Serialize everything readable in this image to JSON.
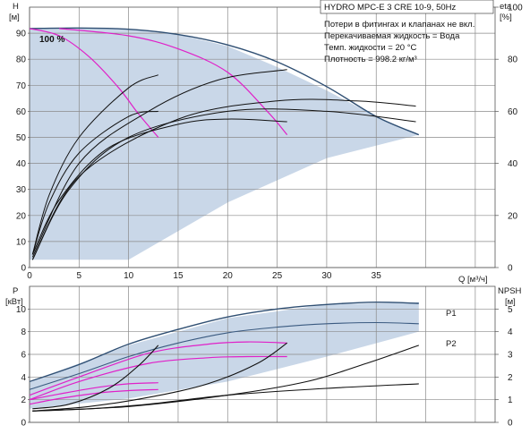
{
  "chart_data": [
    {
      "type": "line",
      "title": "HYDRO MPC-E 3 CRE 10-9, 50Hz",
      "notes": [
        "Потери в фитингах и клапанах не вкл.",
        "Перекачиваемая жидкость = Вода",
        "Темп. жидкости = 20 °C",
        "Плотность = 998.2 кг/м³"
      ],
      "ylabel_left": [
        "H",
        "[м]"
      ],
      "ylabel_right": [
        "eta",
        "[%]"
      ],
      "xlabel": "Q [м³/ч]",
      "xlim": [
        0,
        47
      ],
      "ylim_left": [
        0,
        100
      ],
      "ylim_right": [
        0,
        100
      ],
      "x_ticks": [
        "0",
        "5",
        "10",
        "15",
        "20",
        "25",
        "30",
        "35"
      ],
      "y_ticks_left": [
        "0",
        "10",
        "20",
        "30",
        "40",
        "50",
        "60",
        "70",
        "80",
        "90"
      ],
      "y_ticks_right": [
        "0",
        "20",
        "40",
        "60",
        "80",
        "100"
      ],
      "speed_label": "100 %",
      "colors": {
        "envelope": "#c9d7e8",
        "max_curve": "#2f4f73",
        "system": "#e020c8",
        "eta": "#111111"
      },
      "envelope": {
        "x": [
          0,
          5,
          10,
          15,
          20,
          25,
          30,
          35,
          39.3,
          39.3,
          30,
          20,
          10,
          5,
          0
        ],
        "y": [
          92,
          92,
          91.5,
          89.5,
          85,
          77,
          68,
          58,
          51,
          51,
          42,
          25,
          3,
          3,
          3
        ]
      },
      "series": [
        {
          "name": "",
          "role": "max",
          "x": [
            0,
            5,
            10,
            15,
            20,
            25,
            30,
            35,
            39.3
          ],
          "y": [
            91.8,
            92,
            91.5,
            89.5,
            85.5,
            79,
            69.5,
            58,
            51
          ]
        },
        {
          "name": "",
          "role": "system",
          "x": [
            0,
            3,
            6,
            9,
            11,
            13
          ],
          "y": [
            91.8,
            89,
            81,
            69,
            59,
            50
          ]
        },
        {
          "name": "",
          "role": "system",
          "x": [
            3,
            10,
            15,
            20,
            24,
            26
          ],
          "y": [
            91.8,
            89,
            84,
            75,
            60,
            51
          ]
        },
        {
          "name": "",
          "role": "eta",
          "axis": "right",
          "x": [
            0.3,
            2,
            5,
            10,
            13
          ],
          "y": [
            5,
            28,
            50,
            69,
            74
          ]
        },
        {
          "name": "",
          "role": "eta",
          "axis": "right",
          "x": [
            0.3,
            2,
            5,
            10,
            13
          ],
          "y": [
            5,
            25,
            44,
            58,
            60
          ]
        },
        {
          "name": "",
          "role": "eta",
          "axis": "right",
          "x": [
            0.3,
            3,
            8,
            15,
            20,
            26
          ],
          "y": [
            5,
            26,
            46,
            55,
            57,
            56
          ]
        },
        {
          "name": "",
          "role": "eta",
          "axis": "right",
          "x": [
            0.3,
            5,
            12,
            19,
            26
          ],
          "y": [
            4,
            40,
            60,
            72,
            76
          ]
        },
        {
          "name": "",
          "role": "eta",
          "axis": "right",
          "x": [
            0.3,
            4,
            10,
            20,
            30,
            39
          ],
          "y": [
            3,
            30,
            50,
            60,
            60,
            56
          ]
        },
        {
          "name": "",
          "role": "eta",
          "axis": "right",
          "x": [
            0.3,
            5,
            15,
            25,
            33,
            39
          ],
          "y": [
            3,
            35,
            57,
            64,
            64,
            62
          ]
        }
      ]
    },
    {
      "type": "line",
      "ylabel_left": [
        "P",
        "[кВт]"
      ],
      "ylabel_right": [
        "NPSH",
        "[м]"
      ],
      "xlim": [
        0,
        47
      ],
      "ylim_left": [
        0,
        12
      ],
      "ylim_right": [
        0,
        6
      ],
      "y_ticks_left": [
        "0",
        "2",
        "4",
        "6",
        "8",
        "10"
      ],
      "y_ticks_right": [
        "0",
        "1",
        "2",
        "3",
        "4",
        "5"
      ],
      "labels": [
        "P1",
        "P2"
      ],
      "envelope": {
        "x": [
          0,
          10,
          20,
          30,
          39.3,
          39.3,
          30,
          20,
          10,
          0
        ],
        "y": [
          3.6,
          6.8,
          9.2,
          10.4,
          10.6,
          8,
          5.8,
          3.6,
          2.1,
          1.2
        ]
      },
      "series": [
        {
          "name": "P1",
          "role": "max",
          "axis": "left",
          "x": [
            0,
            5,
            10,
            15,
            20,
            25,
            30,
            35,
            39.3
          ],
          "y": [
            3.6,
            5.1,
            6.9,
            8.2,
            9.3,
            10,
            10.4,
            10.6,
            10.5
          ]
        },
        {
          "name": "P2",
          "role": "max2",
          "axis": "left",
          "x": [
            0,
            5,
            10,
            15,
            20,
            25,
            30,
            35,
            39.3
          ],
          "y": [
            2.9,
            4.3,
            5.8,
            7,
            7.9,
            8.4,
            8.7,
            8.8,
            8.7
          ]
        },
        {
          "name": "",
          "role": "system",
          "axis": "left",
          "x": [
            0,
            3,
            7,
            10,
            13
          ],
          "y": [
            2.0,
            2.5,
            3.1,
            3.4,
            3.5
          ]
        },
        {
          "name": "",
          "role": "system",
          "axis": "left",
          "x": [
            0,
            3,
            7,
            10,
            13
          ],
          "y": [
            1.6,
            2.1,
            2.6,
            2.8,
            2.9
          ]
        },
        {
          "name": "",
          "role": "system",
          "axis": "left",
          "x": [
            0,
            5,
            12,
            18,
            22,
            26
          ],
          "y": [
            2.4,
            4.0,
            6.1,
            6.9,
            7.1,
            7.0
          ]
        },
        {
          "name": "",
          "role": "system",
          "axis": "left",
          "x": [
            0,
            5,
            12,
            18,
            22,
            26
          ],
          "y": [
            2.0,
            3.6,
            5.2,
            5.7,
            5.8,
            5.8
          ]
        },
        {
          "name": "",
          "role": "npsh",
          "axis": "right",
          "x": [
            0.3,
            4,
            8,
            11,
            13
          ],
          "y": [
            0.6,
            0.8,
            1.5,
            2.5,
            3.4
          ]
        },
        {
          "name": "",
          "role": "npsh",
          "axis": "right",
          "x": [
            0.3,
            6,
            12,
            18,
            23,
            26
          ],
          "y": [
            0.5,
            0.7,
            1.1,
            1.7,
            2.6,
            3.5
          ]
        },
        {
          "name": "",
          "role": "npsh",
          "axis": "right",
          "x": [
            0.3,
            10,
            20,
            28,
            34,
            39.3
          ],
          "y": [
            0.5,
            0.7,
            1.2,
            1.8,
            2.6,
            3.4
          ]
        },
        {
          "name": "",
          "role": "npsh",
          "axis": "right",
          "x": [
            0.3,
            6,
            12,
            20,
            30,
            39.3
          ],
          "y": [
            0.5,
            0.6,
            0.8,
            1.2,
            1.5,
            1.7
          ]
        }
      ]
    }
  ]
}
